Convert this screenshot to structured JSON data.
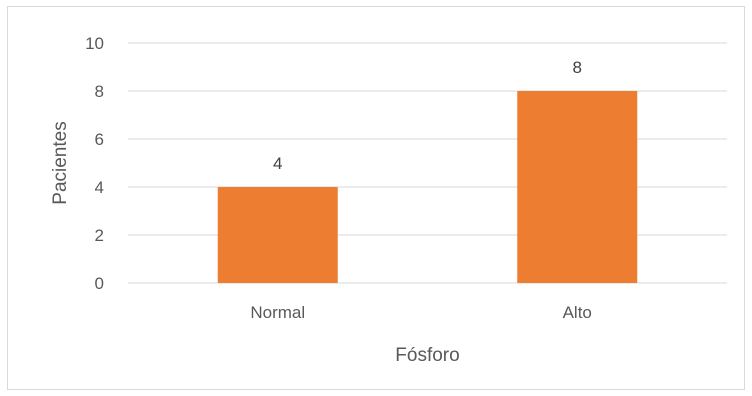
{
  "chart_data": {
    "type": "bar",
    "categories": [
      "Normal",
      "Alto"
    ],
    "values": [
      4,
      8
    ],
    "data_labels": [
      "4",
      "8"
    ],
    "title": "",
    "xlabel": "Fósforo",
    "ylabel": "Pacientes",
    "ylim": [
      0,
      10
    ],
    "yticks": [
      0,
      2,
      4,
      6,
      8,
      10
    ],
    "ytick_labels": [
      "0",
      "2",
      "4",
      "6",
      "8",
      "10"
    ],
    "grid": true,
    "legend": "none",
    "colors": {
      "bar": "#ED7D31",
      "grid": "#D9D9D9",
      "text": "#595959",
      "data_label": "#404040"
    }
  }
}
